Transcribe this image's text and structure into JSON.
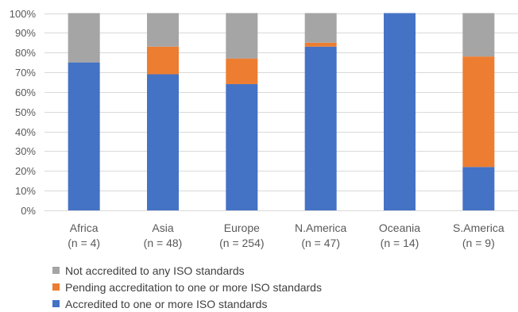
{
  "chart_data": {
    "type": "bar",
    "stacked": true,
    "categories": [
      [
        "Africa",
        "(n = 4)"
      ],
      [
        "Asia",
        "(n = 48)"
      ],
      [
        "Europe",
        "(n = 254)"
      ],
      [
        "N.America",
        "(n = 47)"
      ],
      [
        "Oceania",
        "(n = 14)"
      ],
      [
        "S.America",
        "(n = 9)"
      ]
    ],
    "series": [
      {
        "name": "Accredited to one or more ISO standards",
        "color": "#4472C4",
        "values": [
          75,
          69,
          64,
          83,
          100,
          22
        ]
      },
      {
        "name": "Pending accreditation to one or more ISO standards",
        "color": "#ED7D31",
        "values": [
          0,
          14,
          13,
          2,
          0,
          56
        ]
      },
      {
        "name": "Not accredited to any ISO standards",
        "color": "#A5A5A5",
        "values": [
          25,
          17,
          23,
          15,
          0,
          22
        ]
      }
    ],
    "legend_order": [
      2,
      1,
      0
    ],
    "legend_position": "bottom-left",
    "ylim": [
      0,
      100
    ],
    "yticks": [
      "0%",
      "10%",
      "20%",
      "30%",
      "40%",
      "50%",
      "60%",
      "70%",
      "80%",
      "90%",
      "100%"
    ],
    "grid": true,
    "gridline_color": "#D9D9D9"
  }
}
